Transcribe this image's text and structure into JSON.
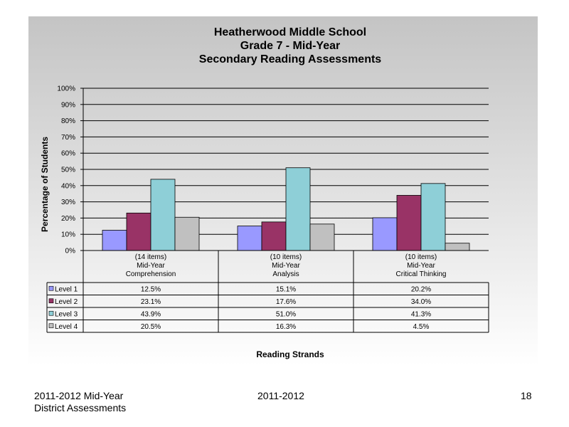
{
  "chart_data": {
    "type": "bar",
    "title": [
      "Heatherwood Middle School",
      "Grade 7 - Mid-Year",
      "Secondary Reading Assessments"
    ],
    "ylabel": "Percentage of Students",
    "xlabel": "Reading Strands",
    "ylim": [
      0,
      100
    ],
    "yticks": [
      "0%",
      "10%",
      "20%",
      "30%",
      "40%",
      "50%",
      "60%",
      "70%",
      "80%",
      "90%",
      "100%"
    ],
    "categories": [
      [
        "(14 items)",
        "Mid-Year",
        "Comprehension"
      ],
      [
        "(10 items)",
        "Mid-Year",
        "Analysis"
      ],
      [
        "(10 items)",
        "Mid-Year",
        "Critical Thinking"
      ]
    ],
    "series": [
      {
        "name": "Level 1",
        "color": "#9999ff",
        "values": [
          12.5,
          15.1,
          20.2
        ],
        "labels": [
          "12.5%",
          "15.1%",
          "20.2%"
        ]
      },
      {
        "name": "Level 2",
        "color": "#993366",
        "values": [
          23.1,
          17.6,
          34.0
        ],
        "labels": [
          "23.1%",
          "17.6%",
          "34.0%"
        ]
      },
      {
        "name": "Level 3",
        "color": "#8ecfd7",
        "values": [
          43.9,
          51.0,
          41.3
        ],
        "labels": [
          "43.9%",
          "51.0%",
          "41.3%"
        ]
      },
      {
        "name": "Level 4",
        "color": "#c0c0c0",
        "values": [
          20.5,
          16.3,
          4.5
        ],
        "labels": [
          "20.5%",
          "16.3%",
          "4.5%"
        ]
      }
    ],
    "grid": true,
    "legend": "data-table"
  },
  "footer": {
    "left_line1": "2011-2012  Mid-Year",
    "left_line2": "District Assessments",
    "center": "2011-2012",
    "page": "18"
  }
}
